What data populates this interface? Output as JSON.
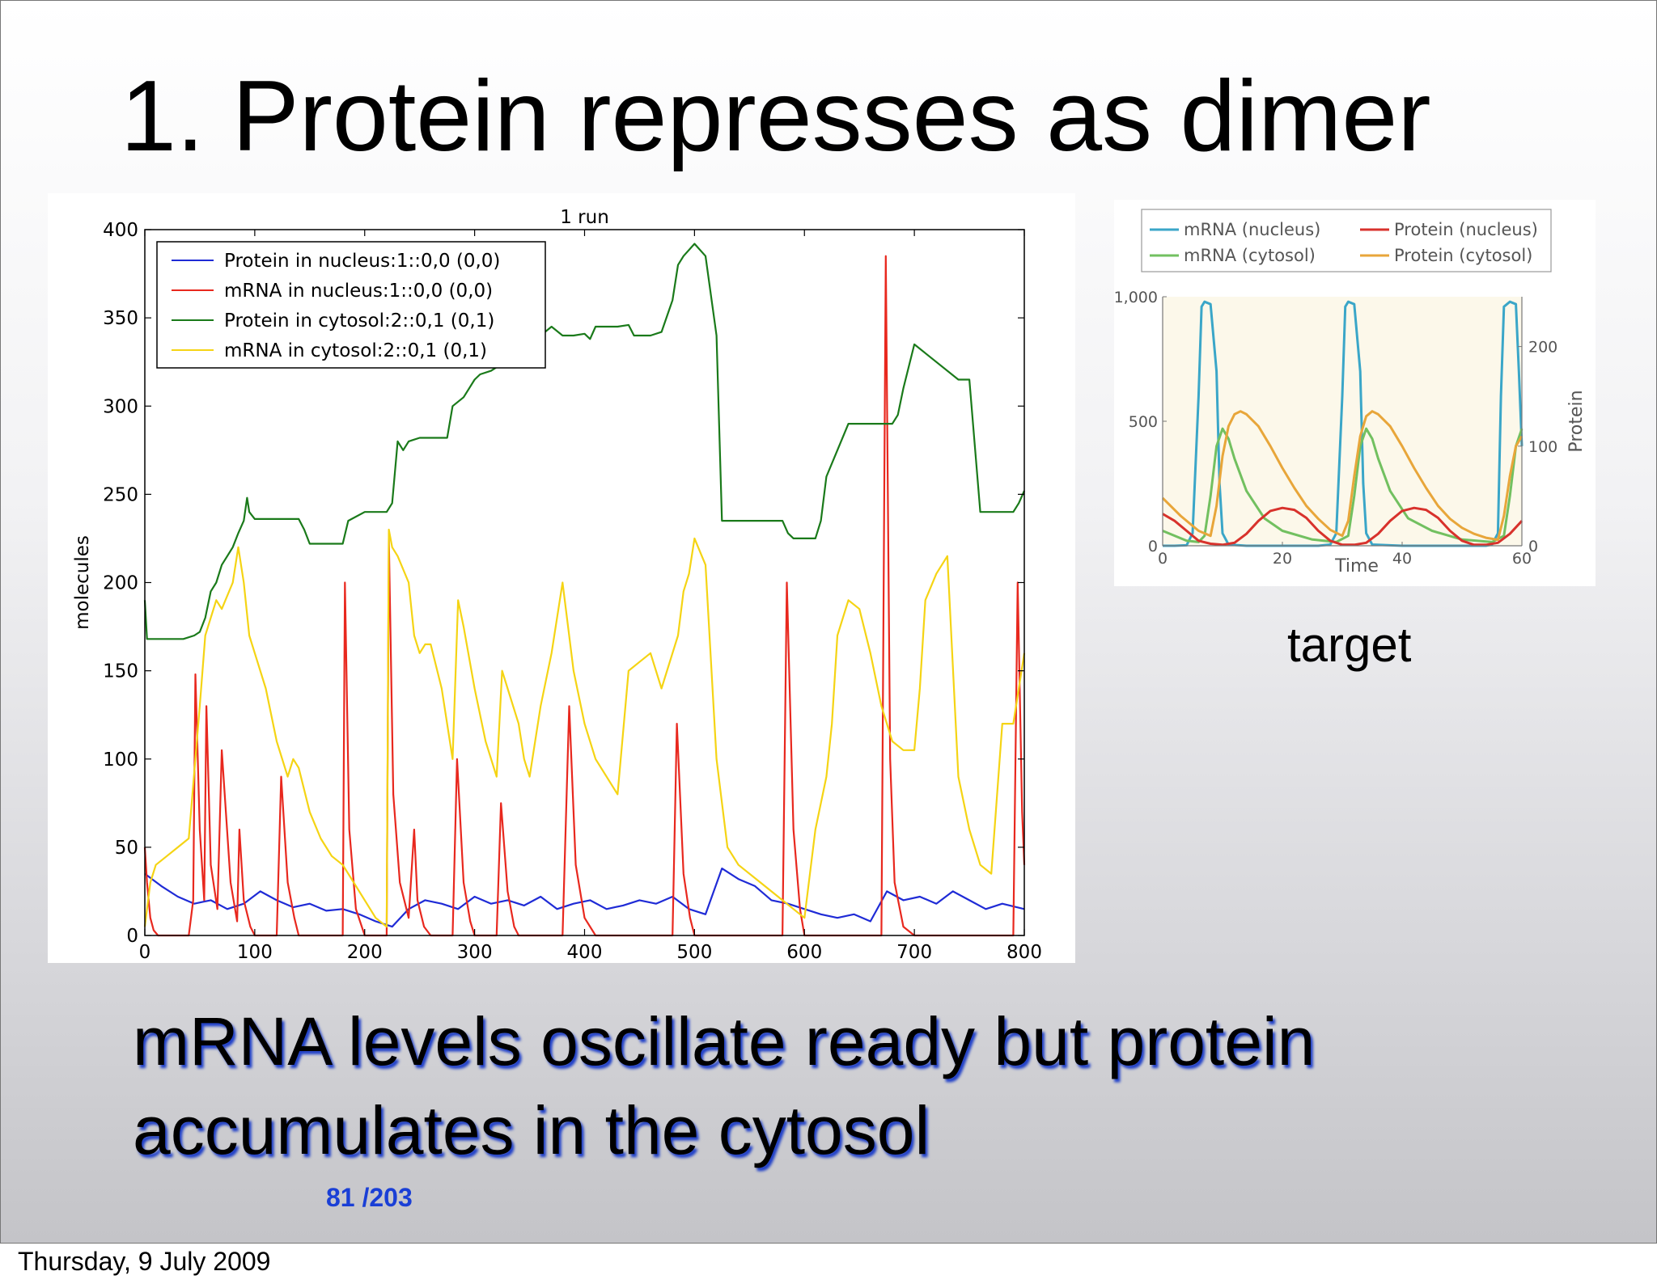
{
  "slide": {
    "title": "1. Protein represses as dimer",
    "caption": "target",
    "body": "mRNA levels oscillate ready but protein accumulates in the cytosol",
    "page_number": "81  /203",
    "footer": "Thursday, 9 July 2009"
  },
  "chart_data": [
    {
      "type": "line",
      "title": "1 run",
      "xlabel": "",
      "ylabel": "molecules",
      "xlim": [
        0,
        800
      ],
      "ylim": [
        0,
        400
      ],
      "xticks": [
        0,
        100,
        200,
        300,
        400,
        500,
        600,
        700,
        800
      ],
      "yticks": [
        0,
        50,
        100,
        150,
        200,
        250,
        300,
        350,
        400
      ],
      "legend_position": "top-left",
      "series": [
        {
          "name": "Protein in nucleus:1::0,0 (0,0)",
          "color": "#1f2bd6",
          "x": [
            0,
            15,
            30,
            45,
            60,
            75,
            90,
            105,
            120,
            135,
            150,
            165,
            180,
            195,
            210,
            225,
            240,
            255,
            270,
            285,
            300,
            315,
            330,
            345,
            360,
            375,
            390,
            405,
            420,
            435,
            450,
            465,
            480,
            495,
            510,
            525,
            540,
            555,
            570,
            585,
            600,
            615,
            630,
            645,
            660,
            675,
            690,
            705,
            720,
            735,
            750,
            765,
            780,
            800
          ],
          "y": [
            35,
            28,
            22,
            18,
            20,
            15,
            18,
            25,
            20,
            16,
            18,
            14,
            15,
            12,
            8,
            5,
            15,
            20,
            18,
            15,
            22,
            18,
            20,
            17,
            22,
            15,
            18,
            20,
            15,
            17,
            20,
            18,
            22,
            15,
            12,
            38,
            32,
            28,
            20,
            18,
            15,
            12,
            10,
            12,
            8,
            25,
            20,
            22,
            18,
            25,
            20,
            15,
            18,
            15
          ]
        },
        {
          "name": "mRNA in nucleus:1::0,0 (0,0)",
          "color": "#e8281e",
          "x": [
            0,
            2,
            5,
            8,
            12,
            20,
            30,
            40,
            44,
            46,
            50,
            54,
            56,
            60,
            66,
            70,
            78,
            84,
            86,
            90,
            96,
            100,
            110,
            120,
            124,
            130,
            136,
            140,
            150,
            160,
            170,
            180,
            182,
            186,
            192,
            200,
            210,
            220,
            222,
            226,
            232,
            240,
            245,
            248,
            254,
            260,
            270,
            280,
            284,
            290,
            296,
            300,
            310,
            320,
            324,
            330,
            336,
            340,
            350,
            360,
            380,
            386,
            392,
            400,
            410,
            416,
            422,
            430,
            440,
            450,
            460,
            470,
            480,
            484,
            490,
            496,
            500,
            510,
            520,
            540,
            560,
            580,
            584,
            590,
            596,
            600,
            604,
            608,
            612,
            620,
            630,
            640,
            650,
            660,
            670,
            674,
            678,
            682,
            690,
            700,
            720,
            740,
            760,
            780,
            790,
            794,
            798,
            800
          ],
          "y": [
            50,
            30,
            10,
            3,
            0,
            0,
            0,
            0,
            20,
            148,
            60,
            20,
            130,
            40,
            15,
            105,
            30,
            8,
            60,
            20,
            5,
            0,
            0,
            0,
            90,
            30,
            10,
            0,
            0,
            0,
            0,
            0,
            200,
            60,
            15,
            0,
            0,
            0,
            225,
            80,
            30,
            10,
            60,
            20,
            5,
            0,
            0,
            0,
            100,
            30,
            8,
            0,
            0,
            0,
            75,
            25,
            5,
            0,
            0,
            0,
            0,
            130,
            40,
            10,
            0,
            0,
            0,
            0,
            0,
            0,
            0,
            0,
            0,
            120,
            35,
            10,
            0,
            0,
            0,
            0,
            0,
            0,
            200,
            60,
            15,
            0,
            0,
            0,
            0,
            0,
            0,
            0,
            0,
            0,
            0,
            385,
            100,
            30,
            5,
            0,
            0,
            0,
            0,
            0,
            0,
            200,
            70,
            40
          ]
        },
        {
          "name": "Protein in cytosol:2::0,1 (0,1)",
          "color": "#1a7a1a",
          "x": [
            0,
            2,
            10,
            20,
            35,
            45,
            50,
            55,
            60,
            65,
            70,
            75,
            80,
            85,
            90,
            93,
            95,
            100,
            110,
            120,
            140,
            145,
            150,
            160,
            180,
            185,
            200,
            220,
            225,
            230,
            235,
            240,
            250,
            260,
            275,
            280,
            290,
            295,
            300,
            305,
            315,
            320,
            330,
            340,
            350,
            360,
            370,
            380,
            390,
            400,
            405,
            410,
            420,
            430,
            440,
            445,
            450,
            460,
            470,
            480,
            485,
            490,
            500,
            510,
            520,
            525,
            530,
            540,
            560,
            580,
            585,
            590,
            600,
            610,
            615,
            620,
            630,
            640,
            650,
            660,
            680,
            685,
            690,
            700,
            710,
            740,
            745,
            750,
            760,
            780,
            790,
            795,
            800
          ],
          "y": [
            190,
            168,
            168,
            168,
            168,
            170,
            172,
            180,
            195,
            200,
            210,
            215,
            220,
            228,
            235,
            248,
            240,
            236,
            236,
            236,
            236,
            230,
            222,
            222,
            222,
            235,
            240,
            240,
            245,
            280,
            275,
            280,
            282,
            282,
            282,
            300,
            305,
            310,
            315,
            318,
            320,
            322,
            325,
            330,
            338,
            340,
            345,
            340,
            340,
            341,
            338,
            345,
            345,
            345,
            346,
            340,
            340,
            340,
            342,
            360,
            380,
            385,
            392,
            385,
            340,
            235,
            235,
            235,
            235,
            235,
            228,
            225,
            225,
            225,
            235,
            260,
            275,
            290,
            290,
            290,
            290,
            295,
            310,
            335,
            330,
            315,
            315,
            315,
            240,
            240,
            240,
            245,
            252
          ]
        },
        {
          "name": "mRNA in cytosol:2::0,1 (0,1)",
          "color": "#f5d414",
          "x": [
            0,
            5,
            10,
            20,
            30,
            40,
            50,
            55,
            60,
            65,
            70,
            80,
            85,
            90,
            95,
            100,
            110,
            120,
            130,
            135,
            140,
            150,
            160,
            170,
            180,
            185,
            190,
            200,
            210,
            220,
            222,
            225,
            230,
            240,
            245,
            250,
            255,
            260,
            270,
            280,
            285,
            290,
            300,
            310,
            320,
            325,
            330,
            340,
            345,
            350,
            360,
            370,
            380,
            390,
            400,
            410,
            420,
            430,
            440,
            450,
            460,
            470,
            480,
            485,
            490,
            495,
            500,
            510,
            520,
            530,
            540,
            560,
            580,
            590,
            600,
            610,
            620,
            625,
            630,
            640,
            650,
            660,
            670,
            680,
            690,
            700,
            705,
            710,
            720,
            730,
            740,
            750,
            760,
            770,
            780,
            790,
            800
          ],
          "y": [
            5,
            30,
            40,
            45,
            50,
            55,
            130,
            170,
            180,
            190,
            185,
            200,
            220,
            200,
            170,
            160,
            140,
            110,
            90,
            100,
            95,
            70,
            55,
            45,
            40,
            35,
            30,
            20,
            10,
            5,
            230,
            220,
            215,
            200,
            170,
            160,
            165,
            165,
            140,
            100,
            190,
            175,
            140,
            110,
            90,
            150,
            140,
            120,
            100,
            90,
            130,
            160,
            200,
            150,
            120,
            100,
            90,
            80,
            150,
            155,
            160,
            140,
            160,
            170,
            195,
            205,
            225,
            210,
            100,
            50,
            40,
            30,
            20,
            15,
            10,
            60,
            90,
            120,
            170,
            190,
            185,
            160,
            130,
            110,
            105,
            105,
            140,
            190,
            205,
            215,
            90,
            60,
            40,
            35,
            120,
            120,
            160
          ]
        }
      ]
    },
    {
      "type": "line",
      "title": "",
      "xlabel": "Time",
      "ylabel": "",
      "y2label": "Protein",
      "xlim": [
        0,
        60
      ],
      "ylim": [
        0,
        1000
      ],
      "y2lim": [
        0,
        250
      ],
      "xticks": [
        0,
        20,
        40,
        60
      ],
      "yticks": [
        0,
        500,
        1000
      ],
      "ytick_labels": [
        "0",
        "500",
        "1,000"
      ],
      "y2ticks": [
        0,
        100,
        200
      ],
      "legend_position": "top",
      "series": [
        {
          "name": "mRNA (nucleus)",
          "color": "#3aa6c8",
          "axis": "left",
          "x": [
            0,
            2,
            4,
            5,
            6,
            6.5,
            7,
            8,
            9,
            9.5,
            10,
            11,
            14,
            20,
            26,
            28,
            29,
            30,
            30.5,
            31,
            32,
            33,
            33.5,
            34,
            35,
            40,
            50,
            54,
            55,
            56,
            56.5,
            57,
            58,
            59,
            59.5,
            60
          ],
          "y": [
            0,
            0,
            2,
            50,
            600,
            960,
            980,
            970,
            700,
            250,
            50,
            5,
            0,
            0,
            0,
            5,
            50,
            600,
            960,
            980,
            970,
            700,
            250,
            50,
            5,
            0,
            0,
            0,
            5,
            50,
            600,
            960,
            980,
            970,
            700,
            400
          ]
        },
        {
          "name": "mRNA (cytosol)",
          "color": "#72c060",
          "axis": "left",
          "x": [
            0,
            4,
            6,
            7,
            8,
            9,
            10,
            11,
            12,
            14,
            17,
            20,
            25,
            29,
            31,
            32,
            33,
            34,
            35,
            36,
            38,
            41,
            45,
            50,
            55,
            57,
            58,
            59,
            60
          ],
          "y": [
            60,
            20,
            15,
            40,
            200,
            400,
            470,
            430,
            350,
            220,
            110,
            60,
            25,
            15,
            40,
            200,
            400,
            470,
            430,
            350,
            220,
            110,
            60,
            25,
            15,
            40,
            200,
            400,
            470
          ]
        },
        {
          "name": "Protein (nucleus)",
          "color": "#d8322c",
          "axis": "right",
          "x": [
            0,
            2,
            4,
            6,
            8,
            10,
            12,
            14,
            16,
            18,
            20,
            22,
            24,
            26,
            28,
            30,
            32,
            34,
            36,
            38,
            40,
            42,
            44,
            46,
            48,
            50,
            52,
            54,
            56,
            58,
            60
          ],
          "y": [
            32,
            25,
            15,
            5,
            2,
            1,
            3,
            12,
            25,
            35,
            38,
            36,
            28,
            15,
            5,
            1,
            1,
            3,
            12,
            25,
            35,
            38,
            36,
            28,
            15,
            5,
            1,
            1,
            3,
            12,
            25
          ]
        },
        {
          "name": "Protein (cytosol)",
          "color": "#e8a63a",
          "axis": "right",
          "x": [
            0,
            3,
            6,
            8,
            9,
            10,
            11,
            12,
            13,
            14,
            16,
            18,
            20,
            22,
            24,
            26,
            28,
            30,
            31,
            32,
            33,
            34,
            35,
            36,
            38,
            40,
            42,
            44,
            46,
            48,
            50,
            52,
            54,
            56,
            57,
            58,
            59,
            60
          ],
          "y": [
            48,
            30,
            15,
            10,
            40,
            90,
            120,
            132,
            135,
            132,
            120,
            100,
            78,
            58,
            40,
            27,
            16,
            10,
            25,
            70,
            110,
            130,
            135,
            132,
            120,
            100,
            78,
            58,
            40,
            27,
            18,
            12,
            8,
            6,
            30,
            70,
            100,
            110
          ]
        }
      ]
    }
  ]
}
